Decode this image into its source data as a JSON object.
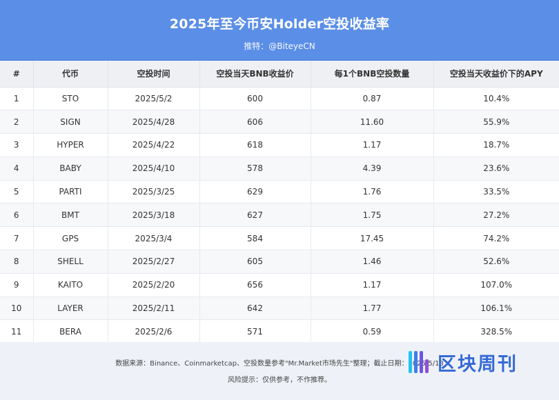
{
  "header": {
    "title": "2025年至今币安Holder空投收益率",
    "subtitle": "推特：@BiteyeCN"
  },
  "table": {
    "columns": [
      "#",
      "代币",
      "空投时间",
      "空投当天BNB收益价",
      "每1个BNB空投数量",
      "空投当天收益价下的APY"
    ],
    "rows": [
      [
        "1",
        "STO",
        "2025/5/2",
        "600",
        "0.87",
        "10.4%"
      ],
      [
        "2",
        "SIGN",
        "2025/4/28",
        "606",
        "11.60",
        "55.9%"
      ],
      [
        "3",
        "HYPER",
        "2025/4/22",
        "618",
        "1.17",
        "18.7%"
      ],
      [
        "4",
        "BABY",
        "2025/4/10",
        "578",
        "4.39",
        "23.6%"
      ],
      [
        "5",
        "PARTI",
        "2025/3/25",
        "629",
        "1.76",
        "33.5%"
      ],
      [
        "6",
        "BMT",
        "2025/3/18",
        "627",
        "1.75",
        "27.2%"
      ],
      [
        "7",
        "GPS",
        "2025/3/4",
        "584",
        "17.45",
        "74.2%"
      ],
      [
        "8",
        "SHELL",
        "2025/2/27",
        "605",
        "1.46",
        "52.6%"
      ],
      [
        "9",
        "KAITO",
        "2025/2/20",
        "656",
        "1.17",
        "107.0%"
      ],
      [
        "10",
        "LAYER",
        "2025/2/11",
        "642",
        "1.77",
        "106.1%"
      ],
      [
        "11",
        "BERA",
        "2025/2/6",
        "571",
        "0.59",
        "328.5%"
      ]
    ]
  },
  "footer": {
    "source": "数据来源：Binance、Coinmarketcap、空投数量参考\"Mr.Market市场先生\"整理；截止日期：2025/5/18",
    "risk": "风险提示：仅供参考，不作推荐。"
  },
  "watermark": {
    "text": "区块周刊",
    "logo_icon": "block-weekly-logo-icon"
  }
}
